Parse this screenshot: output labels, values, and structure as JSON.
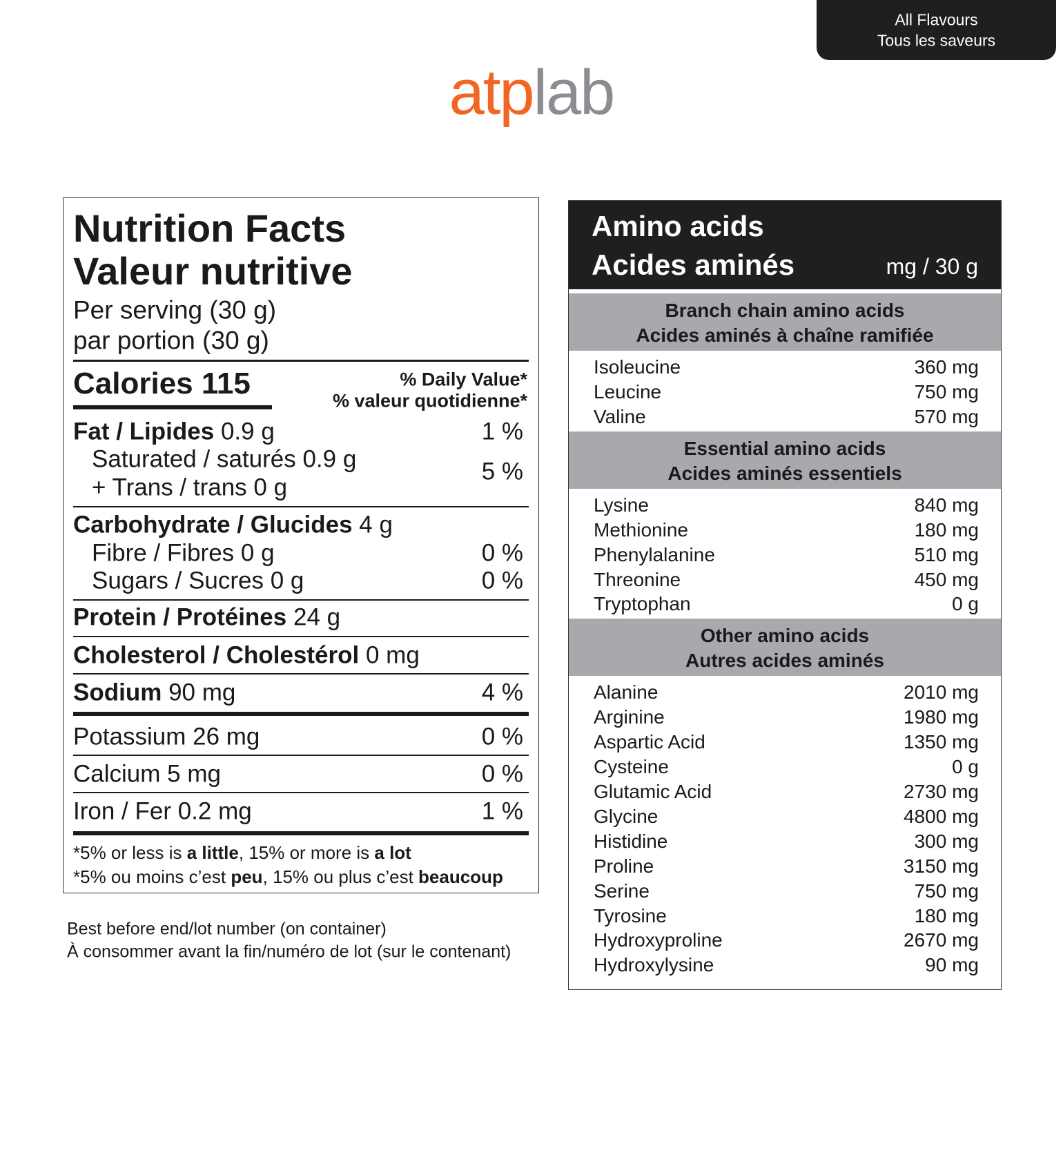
{
  "badge": {
    "line1": "All Flavours",
    "line2": "Tous les saveurs"
  },
  "logo": {
    "part1": "atp",
    "part2": "lab"
  },
  "nutrition": {
    "title1": "Nutrition Facts",
    "title2": "Valeur nutritive",
    "serving1": "Per serving (30 g)",
    "serving2": "par portion (30 g)",
    "calories": "Calories 115",
    "dv1": "% Daily Value*",
    "dv2": "% valeur quotidienne*",
    "fat": {
      "label": "Fat / Lipides",
      "amount": "0.9 g",
      "dv": "1 %"
    },
    "saturated": "Saturated / saturés 0.9 g",
    "trans": "+ Trans / trans 0 g",
    "sat_dv": "5 %",
    "carb": {
      "label": "Carbohydrate / Glucides",
      "amount": "4 g"
    },
    "fibre": {
      "label": "Fibre / Fibres 0 g",
      "dv": "0 %"
    },
    "sugars": {
      "label": "Sugars / Sucres 0 g",
      "dv": "0 %"
    },
    "protein": {
      "label": "Protein / Protéines",
      "amount": "24 g"
    },
    "cholesterol": {
      "label": "Cholesterol / Cholestérol",
      "amount": "0 mg"
    },
    "sodium": {
      "label": "Sodium",
      "amount": "90 mg",
      "dv": "4 %"
    },
    "potassium": {
      "label": "Potassium 26 mg",
      "dv": "0 %"
    },
    "calcium": {
      "label": "Calcium 5 mg",
      "dv": "0 %"
    },
    "iron": {
      "label": "Iron / Fer 0.2 mg",
      "dv": "1 %"
    },
    "footnote_en": [
      "*5% or less is ",
      "a little",
      ", 15% or more is ",
      "a lot"
    ],
    "footnote_fr": [
      "*5% ou moins c’est ",
      "peu",
      ", 15% ou plus c’est ",
      "beaucoup"
    ]
  },
  "footer": {
    "line1": "Best before end/lot number (on container)",
    "line2": "À consommer avant la fin/numéro de lot (sur le contenant)"
  },
  "amino": {
    "title1": "Amino acids",
    "title2": "Acides aminés",
    "unit": "mg / 30 g",
    "sections": [
      {
        "title1": "Branch chain amino acids",
        "title2": "Acides aminés à chaîne ramifiée",
        "rows": [
          {
            "name": "Isoleucine",
            "amount": "360 mg"
          },
          {
            "name": "Leucine",
            "amount": "750 mg"
          },
          {
            "name": "Valine",
            "amount": "570 mg"
          }
        ]
      },
      {
        "title1": "Essential amino acids",
        "title2": "Acides aminés essentiels",
        "rows": [
          {
            "name": "Lysine",
            "amount": "840 mg"
          },
          {
            "name": "Methionine",
            "amount": "180 mg"
          },
          {
            "name": "Phenylalanine",
            "amount": "510 mg"
          },
          {
            "name": "Threonine",
            "amount": "450 mg"
          },
          {
            "name": "Tryptophan",
            "amount": "0 g"
          }
        ]
      },
      {
        "title1": "Other amino acids",
        "title2": "Autres acides aminés",
        "rows": [
          {
            "name": "Alanine",
            "amount": "2010 mg"
          },
          {
            "name": "Arginine",
            "amount": "1980 mg"
          },
          {
            "name": "Aspartic Acid",
            "amount": "1350 mg"
          },
          {
            "name": "Cysteine",
            "amount": "0 g"
          },
          {
            "name": "Glutamic Acid",
            "amount": "2730 mg"
          },
          {
            "name": "Glycine",
            "amount": "4800 mg"
          },
          {
            "name": "Histidine",
            "amount": "300 mg"
          },
          {
            "name": "Proline",
            "amount": "3150 mg"
          },
          {
            "name": "Serine",
            "amount": "750 mg"
          },
          {
            "name": "Tyrosine",
            "amount": "180 mg"
          },
          {
            "name": "Hydroxyproline",
            "amount": "2670 mg"
          },
          {
            "name": "Hydroxylysine",
            "amount": "90 mg"
          }
        ]
      }
    ]
  }
}
